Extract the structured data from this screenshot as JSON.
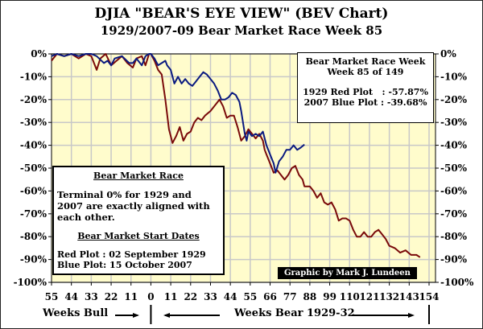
{
  "chart_data": {
    "type": "line",
    "title": "DJIA \"BEAR'S EYE VIEW\" (BEV Chart)",
    "subtitle": "1929/2007-09  Bear Market Race Week 85",
    "xlabel_left": "Weeks Bull",
    "xlabel_right": "Weeks Bear 1929-32",
    "xlim": [
      -55,
      154
    ],
    "ylim": [
      -100,
      0
    ],
    "grid": true,
    "x_ticks": [
      -55,
      -44,
      -33,
      -22,
      -11,
      0,
      11,
      22,
      33,
      44,
      55,
      66,
      77,
      88,
      99,
      110,
      121,
      132,
      143,
      154
    ],
    "x_tick_labels": [
      "55",
      "44",
      "33",
      "22",
      "11",
      "0",
      "11",
      "22",
      "33",
      "44",
      "55",
      "66",
      "77",
      "88",
      "99",
      "110",
      "121",
      "132",
      "143",
      "154"
    ],
    "y_ticks": [
      0,
      -10,
      -20,
      -30,
      -40,
      -50,
      -60,
      -70,
      -80,
      -90,
      -100
    ],
    "y_tick_labels": [
      "0%",
      "-10%",
      "-20%",
      "-30%",
      "-40%",
      "-50%",
      "-60%",
      "-70%",
      "-80%",
      "-90%",
      "-100%"
    ],
    "series": [
      {
        "name": "1929 Red Plot",
        "color": "#7a0a0a",
        "points": [
          [
            -55,
            -3
          ],
          [
            -52,
            0
          ],
          [
            -48,
            -1
          ],
          [
            -44,
            0
          ],
          [
            -40,
            -2
          ],
          [
            -36,
            0
          ],
          [
            -33,
            -1
          ],
          [
            -30,
            -7
          ],
          [
            -28,
            -2
          ],
          [
            -25,
            0
          ],
          [
            -22,
            -5
          ],
          [
            -19,
            -3
          ],
          [
            -16,
            -1
          ],
          [
            -13,
            -4
          ],
          [
            -10,
            -6
          ],
          [
            -8,
            -2
          ],
          [
            -5,
            -1
          ],
          [
            -3,
            -5
          ],
          [
            -1,
            0
          ],
          [
            0,
            0
          ],
          [
            2,
            -3
          ],
          [
            4,
            -7
          ],
          [
            6,
            -9
          ],
          [
            8,
            -20
          ],
          [
            10,
            -33
          ],
          [
            12,
            -39
          ],
          [
            14,
            -36
          ],
          [
            16,
            -32
          ],
          [
            18,
            -38
          ],
          [
            20,
            -35
          ],
          [
            22,
            -34
          ],
          [
            24,
            -30
          ],
          [
            26,
            -28
          ],
          [
            28,
            -29
          ],
          [
            30,
            -27
          ],
          [
            33,
            -25
          ],
          [
            36,
            -22
          ],
          [
            38,
            -20
          ],
          [
            40,
            -23
          ],
          [
            42,
            -28
          ],
          [
            44,
            -27
          ],
          [
            46,
            -27
          ],
          [
            48,
            -32
          ],
          [
            50,
            -38
          ],
          [
            52,
            -36
          ],
          [
            54,
            -33
          ],
          [
            56,
            -35
          ],
          [
            58,
            -37
          ],
          [
            60,
            -35
          ],
          [
            62,
            -38
          ],
          [
            63,
            -42
          ],
          [
            64,
            -44
          ],
          [
            66,
            -48
          ],
          [
            68,
            -52
          ],
          [
            70,
            -51
          ],
          [
            72,
            -53
          ],
          [
            74,
            -55
          ],
          [
            76,
            -53
          ],
          [
            78,
            -50
          ],
          [
            80,
            -49
          ],
          [
            82,
            -53
          ],
          [
            84,
            -55
          ],
          [
            85,
            -58
          ],
          [
            88,
            -58
          ],
          [
            90,
            -60
          ],
          [
            92,
            -63
          ],
          [
            94,
            -61
          ],
          [
            96,
            -65
          ],
          [
            98,
            -66
          ],
          [
            100,
            -65
          ],
          [
            102,
            -68
          ],
          [
            104,
            -73
          ],
          [
            106,
            -72
          ],
          [
            108,
            -72
          ],
          [
            110,
            -73
          ],
          [
            112,
            -77
          ],
          [
            114,
            -80
          ],
          [
            116,
            -80
          ],
          [
            118,
            -78
          ],
          [
            120,
            -80
          ],
          [
            122,
            -80
          ],
          [
            124,
            -78
          ],
          [
            126,
            -77
          ],
          [
            128,
            -79
          ],
          [
            130,
            -81
          ],
          [
            132,
            -84
          ],
          [
            135,
            -85
          ],
          [
            138,
            -87
          ],
          [
            141,
            -86
          ],
          [
            144,
            -88
          ],
          [
            147,
            -88
          ],
          [
            149,
            -89
          ]
        ]
      },
      {
        "name": "2007 Blue Plot",
        "color": "#0a1a80",
        "points": [
          [
            -55,
            -1
          ],
          [
            -52,
            0
          ],
          [
            -48,
            -1
          ],
          [
            -44,
            0
          ],
          [
            -40,
            -1
          ],
          [
            -36,
            0
          ],
          [
            -33,
            0
          ],
          [
            -30,
            -1
          ],
          [
            -26,
            -4
          ],
          [
            -24,
            -3
          ],
          [
            -22,
            -5
          ],
          [
            -20,
            -2
          ],
          [
            -16,
            -1
          ],
          [
            -12,
            -4
          ],
          [
            -10,
            -4
          ],
          [
            -8,
            -2
          ],
          [
            -5,
            -5
          ],
          [
            -3,
            -1
          ],
          [
            -1,
            0
          ],
          [
            0,
            0
          ],
          [
            2,
            -2
          ],
          [
            4,
            -5
          ],
          [
            6,
            -4
          ],
          [
            8,
            -3
          ],
          [
            9,
            -5
          ],
          [
            11,
            -7
          ],
          [
            13,
            -13
          ],
          [
            15,
            -10
          ],
          [
            17,
            -13
          ],
          [
            19,
            -11
          ],
          [
            21,
            -13
          ],
          [
            23,
            -14
          ],
          [
            25,
            -12
          ],
          [
            27,
            -10
          ],
          [
            29,
            -8
          ],
          [
            31,
            -9
          ],
          [
            33,
            -11
          ],
          [
            35,
            -13
          ],
          [
            37,
            -16
          ],
          [
            39,
            -20
          ],
          [
            41,
            -20
          ],
          [
            43,
            -19
          ],
          [
            45,
            -17
          ],
          [
            47,
            -18
          ],
          [
            49,
            -21
          ],
          [
            50,
            -25
          ],
          [
            52,
            -35
          ],
          [
            53,
            -38
          ],
          [
            54,
            -34
          ],
          [
            56,
            -36
          ],
          [
            58,
            -35
          ],
          [
            60,
            -36
          ],
          [
            62,
            -34
          ],
          [
            64,
            -40
          ],
          [
            66,
            -44
          ],
          [
            68,
            -48
          ],
          [
            69,
            -52
          ],
          [
            71,
            -47
          ],
          [
            73,
            -45
          ],
          [
            75,
            -42
          ],
          [
            77,
            -42
          ],
          [
            79,
            -40
          ],
          [
            81,
            -42
          ],
          [
            83,
            -41
          ],
          [
            85,
            -39.68
          ]
        ]
      }
    ]
  },
  "info_box_right": {
    "line1": "Bear Market Race Week",
    "line2": "Week 85 of 149",
    "red_label": "1929 Red Plot   : -57.87%",
    "blue_label": "2007 Blue Plot : -39.68%"
  },
  "info_box_left": {
    "heading1": "Bear Market Race",
    "text1": "Terminal 0% for 1929 and 2007 are exactly aligned with each other.",
    "heading2": "Bear Market Start Dates",
    "red_date": "Red Plot :  02 September 1929",
    "blue_date": "Blue Plot:  15 October 2007"
  },
  "credit": "Graphic by Mark J. Lundeen"
}
